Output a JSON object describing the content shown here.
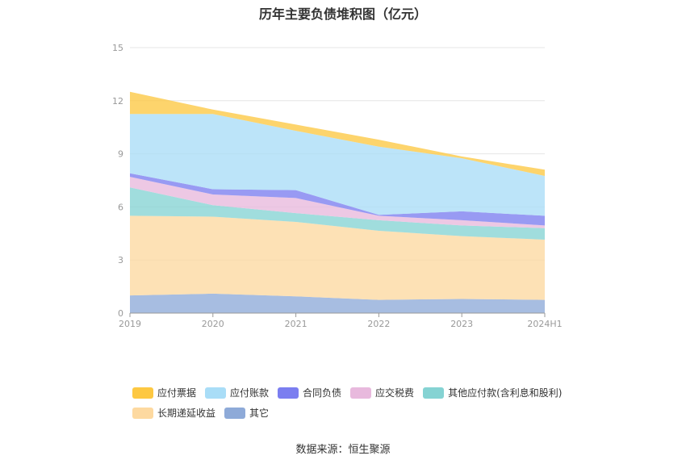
{
  "page": {
    "title": "历年主要负债堆积图（亿元）",
    "source": "数据来源：恒生聚源"
  },
  "chart_data": {
    "type": "area",
    "stacked": true,
    "title": "历年主要负债堆积图（亿元）",
    "categories": [
      "2019",
      "2020",
      "2021",
      "2022",
      "2023",
      "2024H1"
    ],
    "ylim": [
      0,
      15
    ],
    "yticks": [
      0,
      3,
      6,
      9,
      12,
      15
    ],
    "grid": true,
    "legend_position": "bottom",
    "series": [
      {
        "name": "其它",
        "color": "#8eaad8",
        "values": [
          1.0,
          1.1,
          0.95,
          0.75,
          0.8,
          0.75
        ]
      },
      {
        "name": "长期递延收益",
        "color": "#fdd9a0",
        "values": [
          4.5,
          4.35,
          4.2,
          3.9,
          3.55,
          3.4
        ]
      },
      {
        "name": "其他应付款(含利息和股利)",
        "color": "#85d3d3",
        "values": [
          1.6,
          0.65,
          0.5,
          0.6,
          0.6,
          0.65
        ]
      },
      {
        "name": "应交税费",
        "color": "#e8b9dd",
        "values": [
          0.6,
          0.6,
          0.85,
          0.25,
          0.3,
          0.15
        ]
      },
      {
        "name": "合同负债",
        "color": "#7b7ef0",
        "values": [
          0.2,
          0.3,
          0.45,
          0.05,
          0.5,
          0.55
        ]
      },
      {
        "name": "应付账款",
        "color": "#a9ddf7",
        "values": [
          3.35,
          4.25,
          3.35,
          3.85,
          3.0,
          2.25
        ]
      },
      {
        "name": "应付票据",
        "color": "#fdc842",
        "values": [
          1.25,
          0.25,
          0.35,
          0.4,
          0.1,
          0.35
        ]
      }
    ],
    "legend_order": [
      "应付票据",
      "应付账款",
      "合同负债",
      "应交税费",
      "其他应付款(含利息和股利)",
      "长期递延收益",
      "其它"
    ]
  }
}
